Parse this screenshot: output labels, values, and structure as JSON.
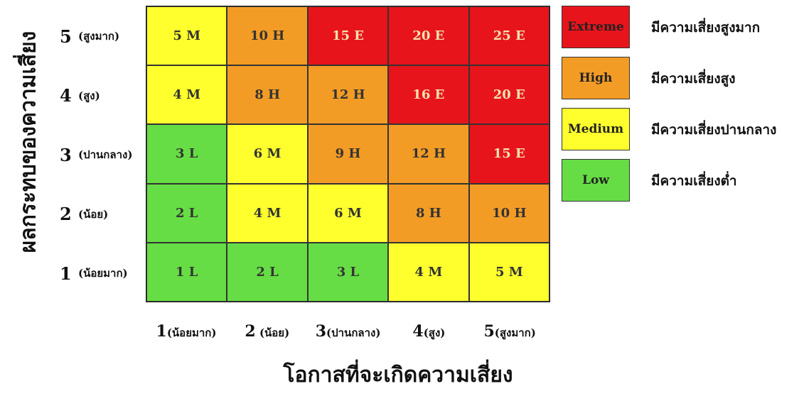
{
  "chart_data": {
    "type": "heatmap",
    "ylabel": "ผลกระทบของความเสี่ยง",
    "xlabel": "โอกาสที่จะเกิดความเสี่ยง",
    "rows": [
      {
        "num": "5",
        "desc": "(สูงมาก)"
      },
      {
        "num": "4",
        "desc": "(สูง)"
      },
      {
        "num": "3",
        "desc": "(ปานกลาง)"
      },
      {
        "num": "2",
        "desc": "(น้อย)"
      },
      {
        "num": "1",
        "desc": "(น้อยมาก)"
      }
    ],
    "columns": [
      {
        "num": "1",
        "desc": "(น้อยมาก)"
      },
      {
        "num": "2",
        "desc": " (น้อย)"
      },
      {
        "num": "3",
        "desc": "(ปานกลาง)"
      },
      {
        "num": "4",
        "desc": "(สูง)"
      },
      {
        "num": "5",
        "desc": "(สูงมาก)"
      }
    ],
    "cells": [
      [
        "5 M",
        "10 H",
        "15 E",
        "20 E",
        "25 E"
      ],
      [
        "4 M",
        "8 H",
        "12 H",
        "16 E",
        "20 E"
      ],
      [
        "3 L",
        "6 M",
        "9 H",
        "12 H",
        "15 E"
      ],
      [
        "2 L",
        "4 M",
        "6 M",
        "8 H",
        "10 H"
      ],
      [
        "1 L",
        "2 L",
        "3 L",
        "4 M",
        "5 M"
      ]
    ],
    "levels": [
      {
        "code": "E",
        "label": "Extreme",
        "desc": "มีความเสี่ยงสูงมาก",
        "color": "#e8141c"
      },
      {
        "code": "H",
        "label": "High",
        "desc": "มีความเสี่ยงสูง",
        "color": "#f39c25"
      },
      {
        "code": "M",
        "label": "Medium",
        "desc": "มีความเสี่ยงปานกลาง",
        "color": "#ffff2e"
      },
      {
        "code": "L",
        "label": "Low",
        "desc": "มีความเสี่ยงต่ำ",
        "color": "#66dd44"
      }
    ]
  }
}
